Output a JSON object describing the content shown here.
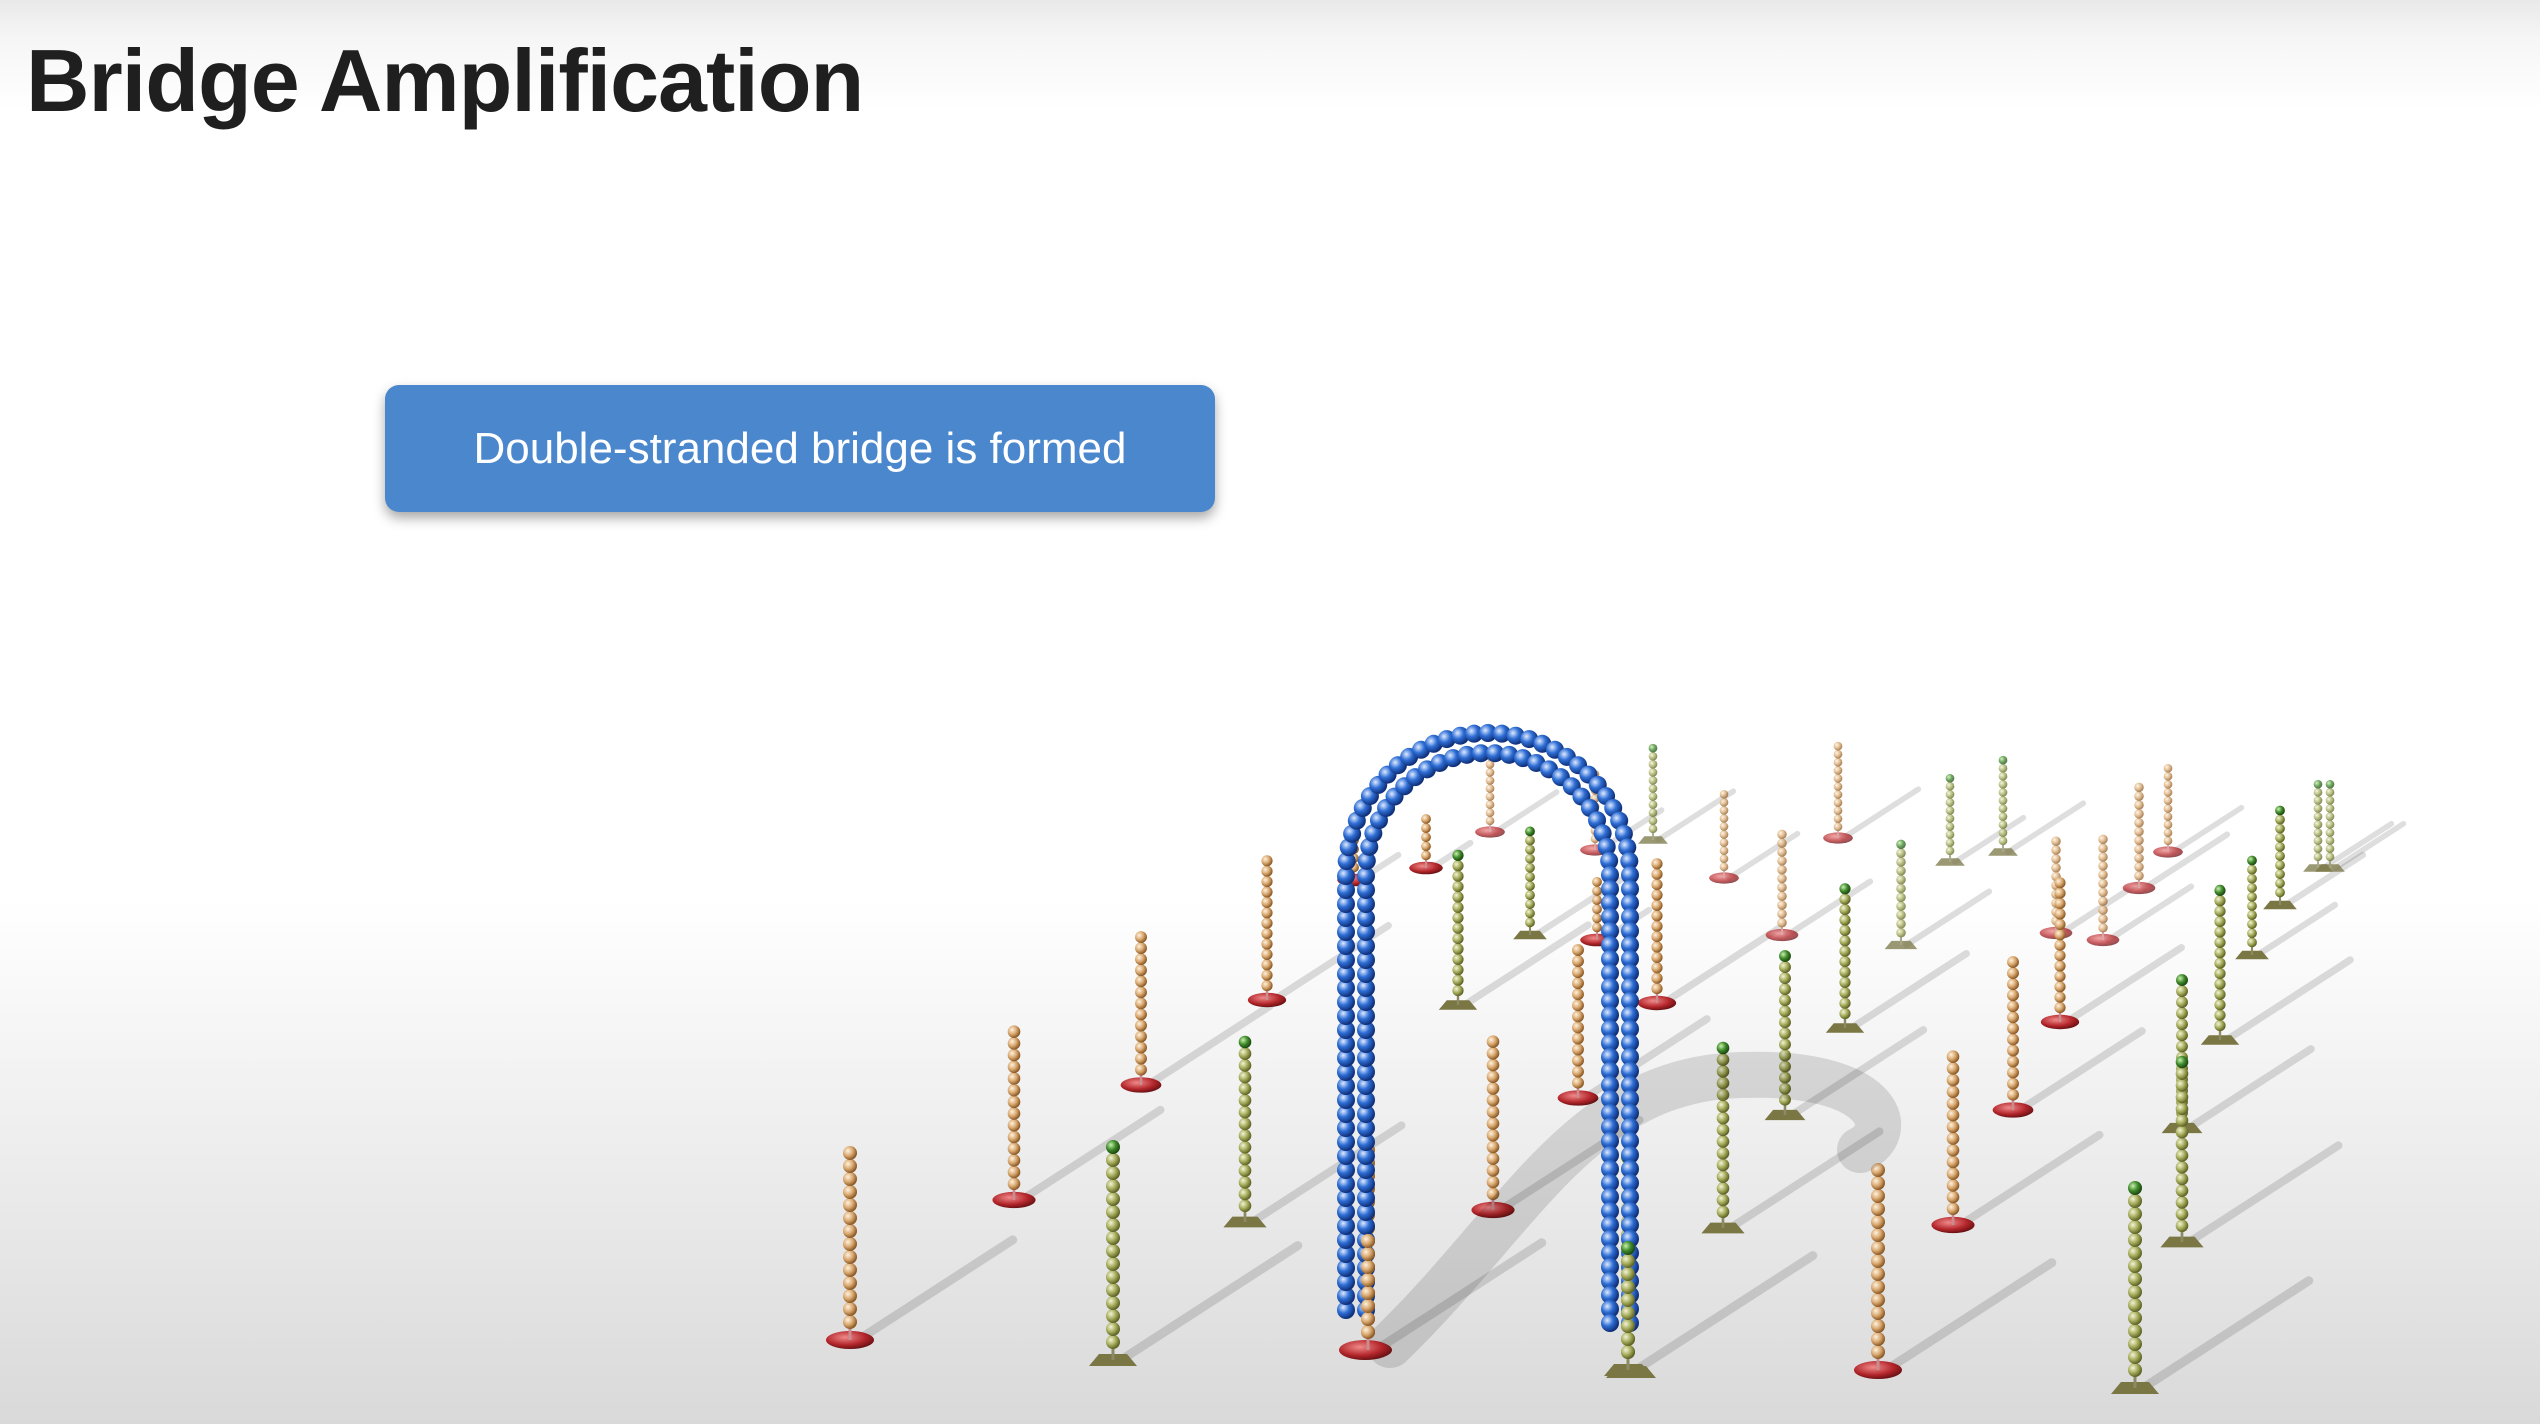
{
  "title": "Bridge Amplification",
  "callout": {
    "text": "Double-stranded bridge is formed",
    "color": "#4a87cc"
  },
  "colors": {
    "forward_strand_bead": "#d9a86f",
    "forward_strand_anchor": "#b3262b",
    "reverse_strand_bead": "#a6ad5c",
    "reverse_strand_tip": "#3f8a2a",
    "reverse_strand_anchor": "#7a7745",
    "bridge_bead": "#2f6fd6"
  }
}
